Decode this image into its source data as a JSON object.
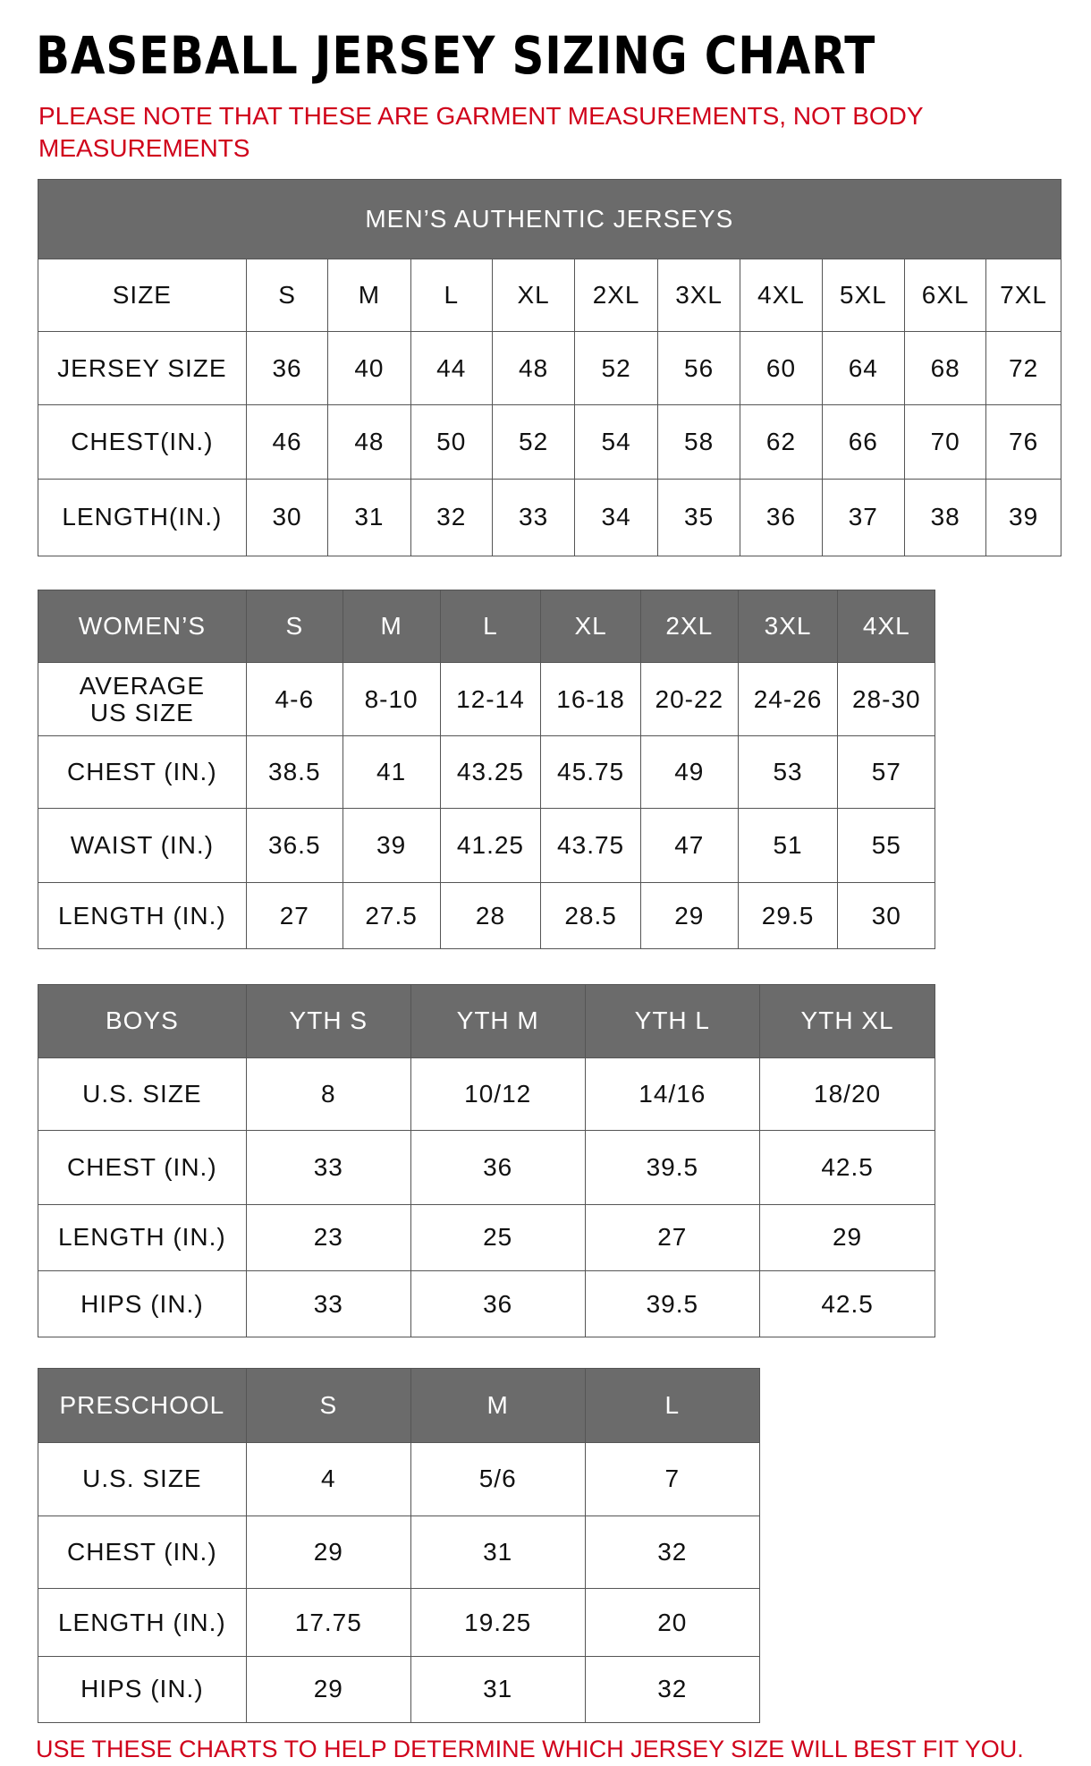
{
  "header": {
    "title": "BASEBALL JERSEY SIZING CHART",
    "note": "PLEASE NOTE THAT THESE ARE GARMENT MEASUREMENTS, NOT BODY MEASUREMENTS"
  },
  "men": {
    "title": "MEN’S AUTHENTIC JERSEYS",
    "header": [
      "SIZE",
      "S",
      "M",
      "L",
      "XL",
      "2XL",
      "3XL",
      "4XL",
      "5XL",
      "6XL",
      "7XL"
    ],
    "rows": [
      [
        "JERSEY SIZE",
        "36",
        "40",
        "44",
        "48",
        "52",
        "56",
        "60",
        "64",
        "68",
        "72"
      ],
      [
        "CHEST(IN.)",
        "46",
        "48",
        "50",
        "52",
        "54",
        "58",
        "62",
        "66",
        "70",
        "76"
      ],
      [
        "LENGTH(IN.)",
        "30",
        "31",
        "32",
        "33",
        "34",
        "35",
        "36",
        "37",
        "38",
        "39"
      ]
    ]
  },
  "women": {
    "header": [
      "WOMEN’S",
      "S",
      "M",
      "L",
      "XL",
      "2XL",
      "3XL",
      "4XL"
    ],
    "rows": [
      [
        "AVERAGE\nUS SIZE",
        "4-6",
        "8-10",
        "12-14",
        "16-18",
        "20-22",
        "24-26",
        "28-30"
      ],
      [
        "CHEST (IN.)",
        "38.5",
        "41",
        "43.25",
        "45.75",
        "49",
        "53",
        "57"
      ],
      [
        "WAIST (IN.)",
        "36.5",
        "39",
        "41.25",
        "43.75",
        "47",
        "51",
        "55"
      ],
      [
        "LENGTH (IN.)",
        "27",
        "27.5",
        "28",
        "28.5",
        "29",
        "29.5",
        "30"
      ]
    ]
  },
  "boys": {
    "header": [
      "BOYS",
      "YTH S",
      "YTH M",
      "YTH L",
      "YTH XL"
    ],
    "rows": [
      [
        "U.S. SIZE",
        "8",
        "10/12",
        "14/16",
        "18/20"
      ],
      [
        "CHEST (IN.)",
        "33",
        "36",
        "39.5",
        "42.5"
      ],
      [
        "LENGTH (IN.)",
        "23",
        "25",
        "27",
        "29"
      ],
      [
        "HIPS (IN.)",
        "33",
        "36",
        "39.5",
        "42.5"
      ]
    ]
  },
  "preschool": {
    "header": [
      "PRESCHOOL",
      "S",
      "M",
      "L"
    ],
    "rows": [
      [
        "U.S. SIZE",
        "4",
        "5/6",
        "7"
      ],
      [
        "CHEST (IN.)",
        "29",
        "31",
        "32"
      ],
      [
        "LENGTH (IN.)",
        "17.75",
        "19.25",
        "20"
      ],
      [
        "HIPS (IN.)",
        "29",
        "31",
        "32"
      ]
    ]
  },
  "footer": "USE THESE CHARTS TO HELP DETERMINE WHICH JERSEY SIZE WILL BEST FIT YOU."
}
